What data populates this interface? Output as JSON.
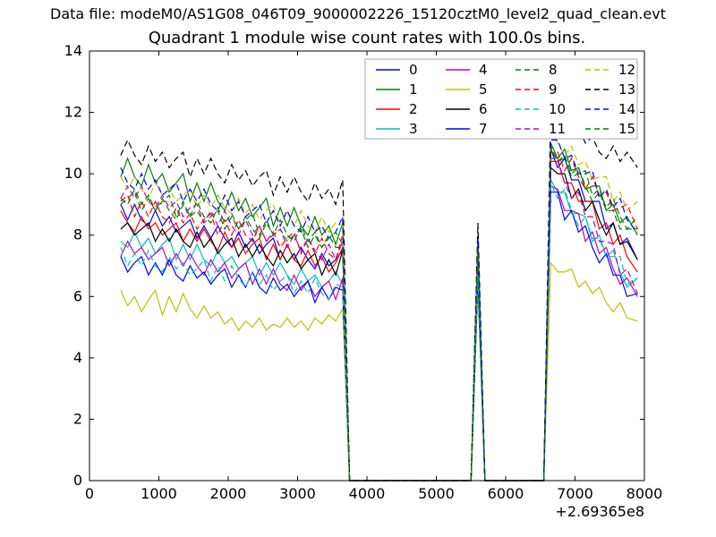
{
  "figure": {
    "data_file_label": "Data file: modeM0/AS1G08_046T09_9000002226_15120cztM0_level2_quad_clean.evt"
  },
  "chart_data": {
    "type": "line",
    "title": "Quadrant 1 module wise count rates with 100.0s bins.",
    "xlabel": "",
    "ylabel": "",
    "x_offset_text": "+2.69365e8",
    "xlim": [
      0,
      8000
    ],
    "ylim": [
      0,
      14
    ],
    "x_ticks": [
      0,
      1000,
      2000,
      3000,
      4000,
      5000,
      6000,
      7000,
      8000
    ],
    "y_ticks": [
      0,
      2,
      4,
      6,
      8,
      10,
      12,
      14
    ],
    "grid": false,
    "background": "#ffffff",
    "axis_color": "#000000",
    "legend": {
      "position": "upper center-right",
      "columns": 4,
      "border_color": "#a8a8a8",
      "labels": [
        "0",
        "1",
        "2",
        "3",
        "4",
        "5",
        "6",
        "7",
        "8",
        "9",
        "10",
        "11",
        "12",
        "13",
        "14",
        "15"
      ]
    },
    "x": [
      450,
      550,
      650,
      750,
      850,
      950,
      1050,
      1150,
      1250,
      1350,
      1450,
      1550,
      1650,
      1750,
      1850,
      1950,
      2050,
      2150,
      2250,
      2350,
      2450,
      2550,
      2650,
      2750,
      2850,
      2950,
      3050,
      3150,
      3250,
      3350,
      3450,
      3550,
      3650,
      3750,
      4250,
      4750,
      5250,
      5500,
      5600,
      5700,
      6100,
      6550,
      6650,
      6750,
      6850,
      6950,
      7050,
      7150,
      7250,
      7350,
      7450,
      7550,
      7650,
      7750,
      7900
    ],
    "series": [
      {
        "name": "0",
        "color": "#0000ff",
        "style": "solid",
        "y": [
          9.0,
          8.5,
          9.0,
          8.5,
          8.3,
          8.8,
          8.3,
          8.6,
          8.1,
          8.3,
          8.5,
          7.9,
          8.3,
          7.9,
          8.3,
          7.9,
          7.6,
          8.1,
          7.6,
          7.9,
          7.4,
          7.7,
          7.9,
          7.2,
          7.7,
          7.2,
          7.6,
          7.2,
          6.9,
          7.4,
          7.0,
          7.2,
          7.5,
          0,
          0,
          0,
          0,
          0,
          7.3,
          0,
          0,
          0,
          10.8,
          10.2,
          10.5,
          9.8,
          9.8,
          9.1,
          9.1,
          9.1,
          8.2,
          8.4,
          7.7,
          7.9,
          7.2
        ]
      },
      {
        "name": "1",
        "color": "#008000",
        "style": "solid",
        "y": [
          9.9,
          10.5,
          9.9,
          9.6,
          10.3,
          9.7,
          10.0,
          9.4,
          9.7,
          10.0,
          9.1,
          9.7,
          9.1,
          9.7,
          9.1,
          8.8,
          9.4,
          8.8,
          9.2,
          8.6,
          8.9,
          9.2,
          8.3,
          8.9,
          8.3,
          8.9,
          8.3,
          8.0,
          8.6,
          8.0,
          8.3,
          7.7,
          8.4,
          0,
          0,
          0,
          0,
          0,
          7.9,
          0,
          0,
          0,
          11.0,
          10.5,
          10.8,
          10.1,
          10.2,
          9.5,
          9.6,
          9.6,
          8.8,
          9.0,
          8.4,
          8.6,
          8.0
        ]
      },
      {
        "name": "2",
        "color": "#ff0000",
        "style": "solid",
        "y": [
          8.8,
          8.4,
          8.1,
          8.6,
          8.2,
          8.4,
          8.0,
          8.2,
          8.4,
          7.8,
          8.2,
          7.8,
          8.2,
          7.8,
          7.5,
          8.1,
          7.6,
          7.9,
          7.4,
          7.7,
          7.9,
          7.2,
          7.7,
          7.2,
          7.7,
          7.2,
          7.0,
          7.5,
          7.0,
          7.3,
          6.8,
          7.1,
          7.6,
          0,
          0,
          0,
          0,
          0,
          7.1,
          0,
          0,
          0,
          10.4,
          10.4,
          9.7,
          9.7,
          9.1,
          9.1,
          9.1,
          8.2,
          8.4,
          7.7,
          8.0,
          7.3,
          6.8
        ]
      },
      {
        "name": "3",
        "color": "#00bfbf",
        "style": "solid",
        "y": [
          7.8,
          7.6,
          8.1,
          7.6,
          7.9,
          7.4,
          7.7,
          7.9,
          7.2,
          7.7,
          7.2,
          7.7,
          7.2,
          7.0,
          7.5,
          7.1,
          7.3,
          6.9,
          7.1,
          7.3,
          6.7,
          7.1,
          6.7,
          7.1,
          6.7,
          6.4,
          6.9,
          6.5,
          6.7,
          6.3,
          6.5,
          6.8,
          6.4,
          0,
          0,
          0,
          0,
          0,
          6.9,
          0,
          0,
          0,
          9.8,
          9.4,
          9.4,
          8.7,
          8.7,
          8.6,
          7.8,
          8.0,
          7.3,
          7.5,
          6.8,
          6.3,
          6.6
        ]
      },
      {
        "name": "4",
        "color": "#bf00bf",
        "style": "solid",
        "y": [
          7.3,
          7.8,
          7.4,
          7.6,
          7.2,
          7.4,
          7.6,
          7.0,
          7.4,
          7.0,
          7.4,
          7.0,
          6.7,
          7.2,
          6.8,
          7.1,
          6.6,
          6.9,
          7.1,
          6.4,
          6.9,
          6.4,
          6.9,
          6.4,
          6.2,
          6.7,
          6.2,
          6.5,
          6.0,
          6.3,
          6.5,
          5.9,
          6.6,
          0,
          0,
          0,
          0,
          0,
          6.8,
          0,
          0,
          0,
          9.6,
          9.5,
          8.8,
          8.8,
          8.7,
          7.8,
          8.1,
          7.4,
          7.6,
          6.9,
          6.4,
          6.6,
          6.0
        ]
      },
      {
        "name": "5",
        "color": "#bfbf00",
        "style": "solid",
        "y": [
          6.2,
          5.7,
          6.0,
          5.5,
          5.9,
          6.2,
          5.4,
          6.0,
          5.5,
          6.1,
          5.6,
          5.3,
          5.7,
          5.3,
          5.5,
          5.1,
          5.3,
          4.9,
          5.2,
          5.0,
          5.3,
          4.9,
          5.1,
          5.0,
          5.3,
          5.0,
          5.2,
          4.9,
          5.3,
          5.1,
          5.4,
          5.2,
          5.6,
          0,
          0,
          0,
          0,
          0,
          6.3,
          0,
          0,
          0,
          7.1,
          6.8,
          6.8,
          6.9,
          6.3,
          6.5,
          6.1,
          6.3,
          5.8,
          5.5,
          5.8,
          5.3,
          5.2
        ]
      },
      {
        "name": "6",
        "color": "#000000",
        "style": "solid",
        "y": [
          8.2,
          8.4,
          8.0,
          8.2,
          8.4,
          7.8,
          8.2,
          7.8,
          8.2,
          7.8,
          7.6,
          8.1,
          7.6,
          7.9,
          7.4,
          7.7,
          7.9,
          7.3,
          7.7,
          7.3,
          7.7,
          7.3,
          7.0,
          7.5,
          7.1,
          7.4,
          6.9,
          7.2,
          7.4,
          6.7,
          7.2,
          6.7,
          7.5,
          0,
          0,
          0,
          0,
          0,
          7.0,
          0,
          0,
          0,
          10.2,
          10.0,
          10.0,
          9.2,
          9.5,
          8.8,
          9.1,
          8.5,
          8.0,
          8.4,
          7.7,
          7.8,
          7.2
        ]
      },
      {
        "name": "7",
        "color": "#0000ff",
        "style": "solid",
        "y": [
          7.3,
          6.8,
          7.1,
          7.3,
          6.7,
          7.1,
          6.7,
          7.2,
          6.7,
          6.5,
          7.0,
          6.6,
          6.8,
          6.4,
          6.7,
          6.9,
          6.3,
          6.7,
          6.3,
          6.8,
          6.3,
          6.1,
          6.6,
          6.2,
          6.4,
          6.0,
          6.3,
          6.5,
          5.8,
          6.3,
          5.9,
          6.3,
          6.2,
          0,
          0,
          0,
          0,
          0,
          6.6,
          0,
          0,
          0,
          9.4,
          9.4,
          8.5,
          8.8,
          8.1,
          8.3,
          7.6,
          7.1,
          7.4,
          6.7,
          6.7,
          6.0,
          6.1
        ]
      },
      {
        "name": "8",
        "color": "#008000",
        "style": "dashed",
        "y": [
          9.0,
          9.2,
          9.4,
          8.8,
          9.2,
          8.8,
          9.2,
          8.8,
          8.5,
          9.0,
          8.6,
          8.8,
          8.4,
          8.6,
          8.8,
          8.2,
          8.6,
          8.2,
          8.6,
          8.2,
          7.9,
          8.4,
          8.0,
          8.2,
          7.8,
          8.0,
          8.2,
          7.6,
          8.0,
          7.6,
          8.0,
          7.6,
          7.6,
          0,
          0,
          0,
          0,
          0,
          7.6,
          0,
          0,
          0,
          10.9,
          10.4,
          10.6,
          10.0,
          10.2,
          9.6,
          9.1,
          9.4,
          8.8,
          8.8,
          8.2,
          8.2,
          8.2
        ]
      },
      {
        "name": "9",
        "color": "#ff0000",
        "style": "dashed",
        "y": [
          9.1,
          9.3,
          8.6,
          9.1,
          8.6,
          9.1,
          8.6,
          8.4,
          8.9,
          8.4,
          8.7,
          8.2,
          8.5,
          8.7,
          8.0,
          8.5,
          8.0,
          8.5,
          8.0,
          7.8,
          8.3,
          7.8,
          8.1,
          7.6,
          7.9,
          8.1,
          7.4,
          7.9,
          7.4,
          7.9,
          7.4,
          7.2,
          8.0,
          0,
          0,
          0,
          0,
          0,
          7.4,
          0,
          0,
          0,
          10.7,
          10.7,
          10.1,
          10.5,
          9.9,
          9.5,
          9.9,
          9.3,
          9.4,
          8.8,
          8.9,
          9.0,
          8.2
        ]
      },
      {
        "name": "10",
        "color": "#00bfbf",
        "style": "dashed",
        "y": [
          7.6,
          7.0,
          7.4,
          7.0,
          7.5,
          7.0,
          6.8,
          7.3,
          6.9,
          7.1,
          6.7,
          6.9,
          7.2,
          6.5,
          7.0,
          6.5,
          7.0,
          6.6,
          6.3,
          6.8,
          6.4,
          6.7,
          6.2,
          6.5,
          6.7,
          6.1,
          6.5,
          6.1,
          6.6,
          6.1,
          5.9,
          6.4,
          6.3,
          0,
          0,
          0,
          0,
          0,
          6.7,
          0,
          0,
          0,
          9.7,
          9.2,
          9.5,
          8.8,
          8.3,
          8.6,
          7.9,
          7.9,
          7.3,
          7.3,
          7.3,
          6.4,
          6.6
        ]
      },
      {
        "name": "11",
        "color": "#bf00bf",
        "style": "dashed",
        "y": [
          9.2,
          9.6,
          9.2,
          9.6,
          9.1,
          8.9,
          9.3,
          8.9,
          9.1,
          8.6,
          8.9,
          9.0,
          8.4,
          8.8,
          8.3,
          8.8,
          8.3,
          8.0,
          8.5,
          8.0,
          8.3,
          7.8,
          8.0,
          8.2,
          7.6,
          8.0,
          7.5,
          7.9,
          7.5,
          7.2,
          7.7,
          7.2,
          7.8,
          0,
          0,
          0,
          0,
          0,
          7.7,
          0,
          0,
          0,
          10.5,
          10.5,
          9.7,
          9.2,
          9.4,
          8.6,
          8.6,
          7.8,
          7.8,
          7.7,
          6.7,
          6.9,
          6.1
        ]
      },
      {
        "name": "12",
        "color": "#bfbf00",
        "style": "dashed",
        "y": [
          9.9,
          9.5,
          9.9,
          9.5,
          9.2,
          9.7,
          9.3,
          9.5,
          9.1,
          9.3,
          9.5,
          8.9,
          9.3,
          8.9,
          9.3,
          8.9,
          8.7,
          9.2,
          8.7,
          9.0,
          8.5,
          8.8,
          9.0,
          8.3,
          8.8,
          8.3,
          8.8,
          8.3,
          8.1,
          8.6,
          8.1,
          8.4,
          8.3,
          0,
          0,
          0,
          0,
          0,
          8.1,
          0,
          0,
          0,
          11.3,
          11.0,
          10.6,
          10.9,
          10.3,
          10.4,
          9.8,
          9.9,
          9.9,
          9.1,
          9.4,
          8.8,
          9.1
        ]
      },
      {
        "name": "13",
        "color": "#000000",
        "style": "dashed",
        "y": [
          10.6,
          11.1,
          10.6,
          10.3,
          10.9,
          10.4,
          10.7,
          10.2,
          10.5,
          10.7,
          9.9,
          10.5,
          10.0,
          10.5,
          10.0,
          9.7,
          10.3,
          9.8,
          10.1,
          9.6,
          9.9,
          10.1,
          9.3,
          9.9,
          9.4,
          9.9,
          9.4,
          9.1,
          9.7,
          9.2,
          9.5,
          9.0,
          9.8,
          0,
          0,
          0,
          0,
          0,
          8.4,
          0,
          0,
          0,
          12.2,
          11.7,
          11.9,
          11.3,
          11.5,
          11.0,
          11.2,
          10.7,
          10.5,
          10.9,
          10.4,
          10.7,
          10.2
        ]
      },
      {
        "name": "14",
        "color": "#0000ff",
        "style": "dashed",
        "y": [
          10.2,
          9.7,
          9.5,
          10.0,
          9.5,
          9.8,
          9.3,
          9.5,
          9.7,
          9.1,
          9.5,
          9.1,
          9.5,
          9.0,
          8.8,
          9.3,
          8.8,
          9.1,
          8.6,
          8.8,
          9.0,
          8.4,
          8.8,
          8.3,
          8.8,
          8.3,
          8.1,
          8.6,
          8.1,
          8.3,
          7.9,
          8.1,
          8.6,
          0,
          0,
          0,
          0,
          0,
          7.9,
          0,
          0,
          0,
          11.1,
          11.1,
          10.5,
          10.6,
          10.0,
          10.0,
          10.1,
          9.2,
          9.5,
          8.9,
          9.2,
          8.5,
          8.1
        ]
      },
      {
        "name": "15",
        "color": "#008000",
        "style": "dashed",
        "y": [
          9.2,
          9.0,
          9.5,
          9.0,
          9.3,
          8.8,
          9.1,
          9.3,
          8.6,
          9.1,
          8.6,
          9.1,
          8.6,
          8.4,
          8.9,
          8.4,
          8.7,
          8.2,
          8.5,
          8.7,
          8.0,
          8.5,
          8.0,
          8.5,
          8.0,
          7.8,
          8.3,
          7.8,
          8.1,
          7.6,
          7.9,
          8.1,
          7.7,
          0,
          0,
          0,
          0,
          0,
          7.5,
          0,
          0,
          0,
          10.8,
          10.4,
          10.5,
          9.9,
          10.0,
          10.1,
          9.3,
          9.5,
          8.9,
          9.2,
          8.6,
          8.2,
          8.6
        ]
      }
    ]
  }
}
